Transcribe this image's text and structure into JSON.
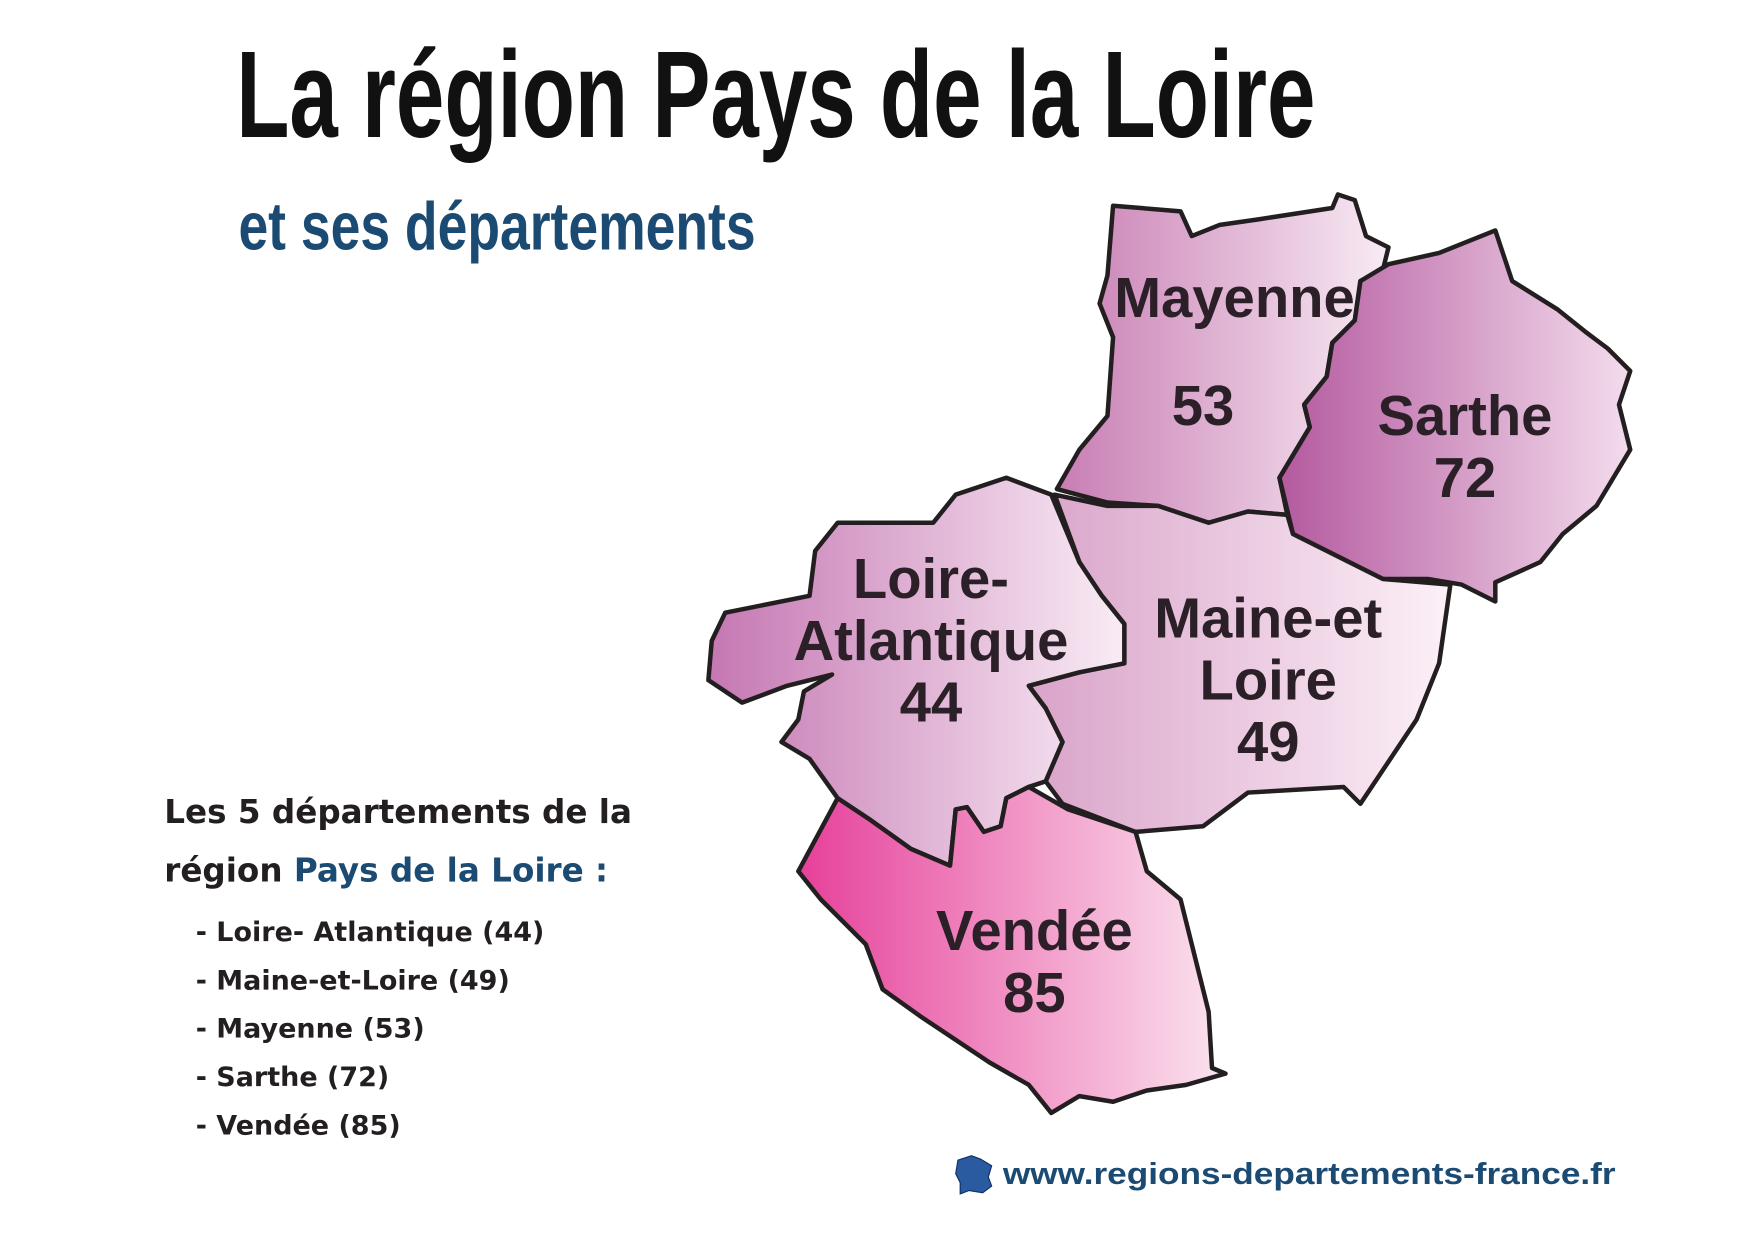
{
  "header": {
    "title": "La région Pays de la Loire",
    "subtitle": "et ses départements"
  },
  "map": {
    "departments": [
      {
        "name_lines": [
          "Mayenne"
        ],
        "code": "53"
      },
      {
        "name_lines": [
          "Sarthe"
        ],
        "code": "72"
      },
      {
        "name_lines": [
          "Loire-",
          "Atlantique"
        ],
        "code": "44"
      },
      {
        "name_lines": [
          "Maine-et",
          "Loire"
        ],
        "code": "49"
      },
      {
        "name_lines": [
          "Vendée"
        ],
        "code": "85"
      }
    ]
  },
  "legend": {
    "heading_line1": "Les 5 départements de la",
    "heading_line2": "région",
    "heading_highlight": "Pays de la Loire :",
    "items": [
      "- Loire- Atlantique (44)",
      "- Maine-et-Loire (49)",
      "- Mayenne (53)",
      "- Sarthe (72)",
      "- Vendée (85)"
    ]
  },
  "footer": {
    "url": "www.regions-departements-france.fr"
  }
}
